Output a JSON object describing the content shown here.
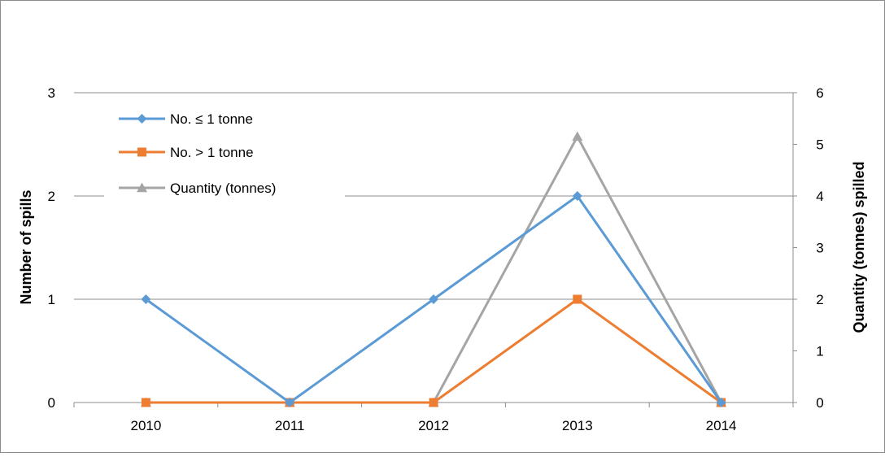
{
  "chart_data": {
    "type": "line",
    "categories": [
      "2010",
      "2011",
      "2012",
      "2013",
      "2014"
    ],
    "series": [
      {
        "name": "No. ≤ 1 tonne",
        "axis": "left",
        "values": [
          1,
          0,
          1,
          2,
          0
        ],
        "color": "#5B9BD5",
        "marker": "diamond"
      },
      {
        "name": "No. > 1 tonne",
        "axis": "left",
        "values": [
          0,
          0,
          0,
          1,
          0
        ],
        "color": "#ED7D31",
        "marker": "square"
      },
      {
        "name": "Quantity (tonnes)",
        "axis": "right",
        "values": [
          0,
          0,
          0,
          5.15,
          0
        ],
        "color": "#A5A5A5",
        "marker": "triangle"
      }
    ],
    "ylabel": "Number of spills",
    "y2label": "Quantity (tonnes) spilled",
    "ylim": [
      0,
      3
    ],
    "y2lim": [
      0,
      6
    ],
    "yticks": [
      "0",
      "1",
      "2",
      "3"
    ],
    "y2ticks": [
      "0",
      "1",
      "2",
      "3",
      "4",
      "5",
      "6"
    ],
    "grid": true,
    "legend_position": "top-left"
  }
}
